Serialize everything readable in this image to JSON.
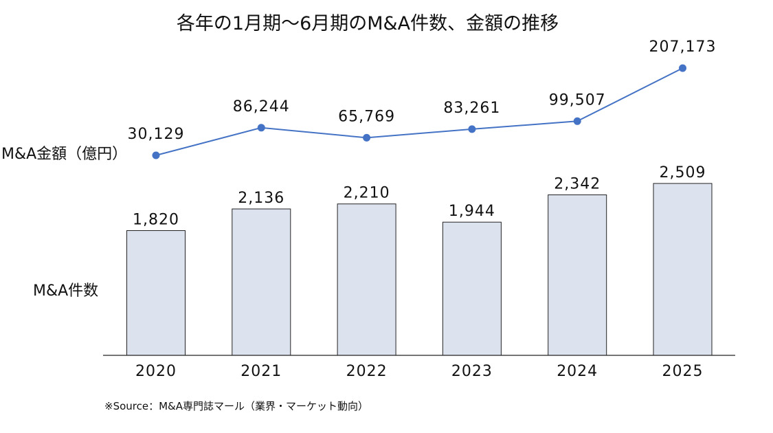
{
  "chart_data": {
    "type": "bar+line",
    "title": "各年の1月期〜6月期のM&A件数、金額の推移",
    "categories": [
      "2020",
      "2021",
      "2022",
      "2023",
      "2024",
      "2025"
    ],
    "series": [
      {
        "name": "M&A金額（億円）",
        "type": "line",
        "values": [
          30129,
          86244,
          65769,
          83261,
          99507,
          207173
        ],
        "labels": [
          "30,129",
          "86,244",
          "65,769",
          "83,261",
          "99,507",
          "207,173"
        ],
        "color": "#4472c4"
      },
      {
        "name": "M&A件数",
        "type": "bar",
        "values": [
          1820,
          2136,
          2210,
          1944,
          2342,
          2509
        ],
        "labels": [
          "1,820",
          "2,136",
          "2,210",
          "1,944",
          "2,342",
          "2,509"
        ],
        "color": "#dce3ee",
        "border": "#222222"
      }
    ],
    "source": "※Source：M&A専門誌マール（業界・マーケット動向）",
    "grid": false,
    "axis_color": "#222222"
  }
}
